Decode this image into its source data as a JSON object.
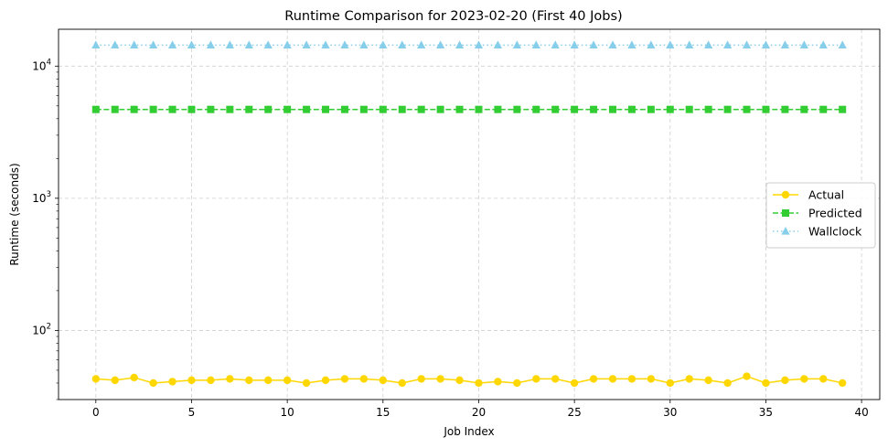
{
  "chart_data": {
    "type": "line",
    "title": "Runtime Comparison for 2023-02-20 (First 40 Jobs)",
    "xlabel": "Job Index",
    "ylabel": "Runtime (seconds)",
    "yscale": "log",
    "xlim": [
      -1.95,
      40.95
    ],
    "ylim": [
      30,
      19000
    ],
    "x_ticks": [
      0,
      5,
      10,
      15,
      20,
      25,
      30,
      35,
      40
    ],
    "x_tick_labels": [
      "0",
      "5",
      "10",
      "15",
      "20",
      "25",
      "30",
      "35",
      "40"
    ],
    "y_ticks": [
      100,
      1000,
      10000
    ],
    "y_tick_labels": [
      {
        "base": "10",
        "exp": "2"
      },
      {
        "base": "10",
        "exp": "3"
      },
      {
        "base": "10",
        "exp": "4"
      }
    ],
    "grid": true,
    "legend_position": "center-right",
    "x": [
      0,
      1,
      2,
      3,
      4,
      5,
      6,
      7,
      8,
      9,
      10,
      11,
      12,
      13,
      14,
      15,
      16,
      17,
      18,
      19,
      20,
      21,
      22,
      23,
      24,
      25,
      26,
      27,
      28,
      29,
      30,
      31,
      32,
      33,
      34,
      35,
      36,
      37,
      38,
      39
    ],
    "series": [
      {
        "name": "Actual",
        "color": "#FFD700",
        "marker": "circle",
        "linestyle": "solid",
        "values": [
          43,
          42,
          44,
          40,
          41,
          42,
          42,
          43,
          42,
          42,
          42,
          40,
          42,
          43,
          43,
          42,
          40,
          43,
          43,
          42,
          40,
          41,
          40,
          43,
          43,
          40,
          43,
          43,
          43,
          43,
          40,
          43,
          42,
          40,
          45,
          40,
          42,
          43,
          43,
          40
        ]
      },
      {
        "name": "Predicted",
        "color": "#32CD32",
        "marker": "square",
        "linestyle": "dashed",
        "values": [
          4700,
          4700,
          4700,
          4700,
          4700,
          4700,
          4700,
          4700,
          4700,
          4700,
          4700,
          4700,
          4700,
          4700,
          4700,
          4700,
          4700,
          4700,
          4700,
          4700,
          4700,
          4700,
          4700,
          4700,
          4700,
          4700,
          4700,
          4700,
          4700,
          4700,
          4700,
          4700,
          4700,
          4700,
          4700,
          4700,
          4700,
          4700,
          4700,
          4700
        ]
      },
      {
        "name": "Wallclock",
        "color": "#87CEEB",
        "marker": "triangle",
        "linestyle": "dotted",
        "values": [
          14400,
          14400,
          14400,
          14400,
          14400,
          14400,
          14400,
          14400,
          14400,
          14400,
          14400,
          14400,
          14400,
          14400,
          14400,
          14400,
          14400,
          14400,
          14400,
          14400,
          14400,
          14400,
          14400,
          14400,
          14400,
          14400,
          14400,
          14400,
          14400,
          14400,
          14400,
          14400,
          14400,
          14400,
          14400,
          14400,
          14400,
          14400,
          14400,
          14400
        ]
      }
    ]
  }
}
